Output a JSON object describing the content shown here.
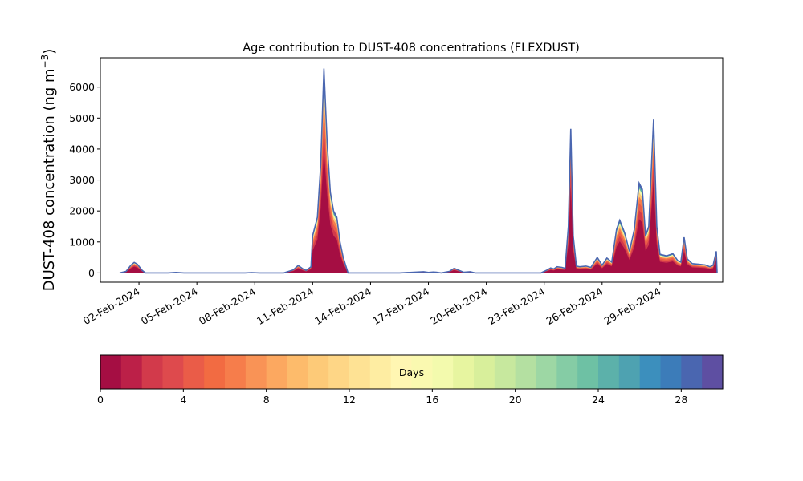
{
  "chart_data": {
    "type": "area",
    "title": "Age contribution to DUST-408 concentrations (FLEXDUST)",
    "ylabel": "DUST-408 concentration (ng m",
    "ylabel_sup": "−3",
    "ylabel_close": ")",
    "ylim": [
      -300,
      6950
    ],
    "xlim": [
      "2024-01-31T00:00",
      "2024-03-03T06:00"
    ],
    "grid": false,
    "y_ticks": [
      0,
      1000,
      2000,
      3000,
      4000,
      5000,
      6000
    ],
    "x_ticks": [
      {
        "date": "2024-02-02",
        "label": "02-Feb-2024"
      },
      {
        "date": "2024-02-05",
        "label": "05-Feb-2024"
      },
      {
        "date": "2024-02-08",
        "label": "08-Feb-2024"
      },
      {
        "date": "2024-02-11",
        "label": "11-Feb-2024"
      },
      {
        "date": "2024-02-14",
        "label": "14-Feb-2024"
      },
      {
        "date": "2024-02-17",
        "label": "17-Feb-2024"
      },
      {
        "date": "2024-02-20",
        "label": "20-Feb-2024"
      },
      {
        "date": "2024-02-23",
        "label": "23-Feb-2024"
      },
      {
        "date": "2024-02-26",
        "label": "26-Feb-2024"
      },
      {
        "date": "2024-02-29",
        "label": "29-Feb-2024"
      }
    ],
    "total": [
      [
        "2024-02-01T00:00",
        0
      ],
      [
        "2024-02-01T08:00",
        50
      ],
      [
        "2024-02-01T14:00",
        250
      ],
      [
        "2024-02-01T18:00",
        340
      ],
      [
        "2024-02-01T22:00",
        280
      ],
      [
        "2024-02-02T04:00",
        80
      ],
      [
        "2024-02-02T08:00",
        0
      ],
      [
        "2024-02-03T12:00",
        0
      ],
      [
        "2024-02-03T22:00",
        15
      ],
      [
        "2024-02-04T08:00",
        0
      ],
      [
        "2024-02-07T12:00",
        0
      ],
      [
        "2024-02-07T20:00",
        10
      ],
      [
        "2024-02-08T06:00",
        0
      ],
      [
        "2024-02-09T12:00",
        0
      ],
      [
        "2024-02-10T00:00",
        100
      ],
      [
        "2024-02-10T06:00",
        240
      ],
      [
        "2024-02-10T12:00",
        130
      ],
      [
        "2024-02-10T16:00",
        80
      ],
      [
        "2024-02-10T22:00",
        200
      ],
      [
        "2024-02-11T00:00",
        1200
      ],
      [
        "2024-02-11T06:00",
        1800
      ],
      [
        "2024-02-11T10:00",
        3500
      ],
      [
        "2024-02-11T14:00",
        6600
      ],
      [
        "2024-02-11T18:00",
        4200
      ],
      [
        "2024-02-11T22:00",
        2600
      ],
      [
        "2024-02-12T02:00",
        2000
      ],
      [
        "2024-02-12T06:00",
        1800
      ],
      [
        "2024-02-12T10:00",
        1000
      ],
      [
        "2024-02-12T14:00",
        500
      ],
      [
        "2024-02-12T20:00",
        0
      ],
      [
        "2024-02-15T12:00",
        0
      ],
      [
        "2024-02-16T18:00",
        40
      ],
      [
        "2024-02-17T00:00",
        15
      ],
      [
        "2024-02-17T06:00",
        30
      ],
      [
        "2024-02-17T10:00",
        20
      ],
      [
        "2024-02-17T16:00",
        0
      ],
      [
        "2024-02-18T02:00",
        50
      ],
      [
        "2024-02-18T08:00",
        150
      ],
      [
        "2024-02-18T14:00",
        80
      ],
      [
        "2024-02-18T20:00",
        20
      ],
      [
        "2024-02-19T04:00",
        40
      ],
      [
        "2024-02-19T10:00",
        0
      ],
      [
        "2024-02-22T20:00",
        0
      ],
      [
        "2024-02-23T04:00",
        100
      ],
      [
        "2024-02-23T08:00",
        160
      ],
      [
        "2024-02-23T12:00",
        130
      ],
      [
        "2024-02-23T16:00",
        200
      ],
      [
        "2024-02-23T22:00",
        180
      ],
      [
        "2024-02-24T02:00",
        150
      ],
      [
        "2024-02-24T06:00",
        1500
      ],
      [
        "2024-02-24T09:00",
        4650
      ],
      [
        "2024-02-24T12:00",
        1200
      ],
      [
        "2024-02-24T16:00",
        220
      ],
      [
        "2024-02-24T20:00",
        200
      ],
      [
        "2024-02-25T04:00",
        220
      ],
      [
        "2024-02-25T10:00",
        180
      ],
      [
        "2024-02-25T18:00",
        500
      ],
      [
        "2024-02-26T00:00",
        250
      ],
      [
        "2024-02-26T06:00",
        480
      ],
      [
        "2024-02-26T12:00",
        350
      ],
      [
        "2024-02-26T18:00",
        1400
      ],
      [
        "2024-02-26T22:00",
        1700
      ],
      [
        "2024-02-27T04:00",
        1300
      ],
      [
        "2024-02-27T10:00",
        700
      ],
      [
        "2024-02-27T16:00",
        1400
      ],
      [
        "2024-02-27T22:00",
        2900
      ],
      [
        "2024-02-28T02:00",
        2700
      ],
      [
        "2024-02-28T06:00",
        1200
      ],
      [
        "2024-02-28T10:00",
        1500
      ],
      [
        "2024-02-28T16:00",
        4950
      ],
      [
        "2024-02-28T20:00",
        1500
      ],
      [
        "2024-02-29T00:00",
        600
      ],
      [
        "2024-02-29T08:00",
        550
      ],
      [
        "2024-02-29T16:00",
        620
      ],
      [
        "2024-02-29T22:00",
        400
      ],
      [
        "2024-03-01T02:00",
        350
      ],
      [
        "2024-03-01T06:00",
        1150
      ],
      [
        "2024-03-01T10:00",
        450
      ],
      [
        "2024-03-01T16:00",
        300
      ],
      [
        "2024-03-02T00:00",
        280
      ],
      [
        "2024-03-02T08:00",
        260
      ],
      [
        "2024-03-02T14:00",
        200
      ],
      [
        "2024-03-02T18:00",
        250
      ],
      [
        "2024-03-02T22:00",
        700
      ],
      [
        "2024-03-02T23:00",
        0
      ]
    ],
    "colorbar": {
      "label": "Days",
      "range": [
        0,
        30
      ],
      "ticks": [
        0,
        4,
        8,
        12,
        16,
        20,
        24,
        28
      ],
      "colors": [
        "#a50e43",
        "#bc2048",
        "#d23a4b",
        "#de4a4d",
        "#ea5c48",
        "#f26b42",
        "#f67d4b",
        "#f99356",
        "#fca860",
        "#fdbb6b",
        "#fdca78",
        "#fed686",
        "#fee294",
        "#feeda2",
        "#fff6b2",
        "#faf9b0",
        "#f3faad",
        "#e7f5a0",
        "#d8ef9b",
        "#c7e89e",
        "#b4e0a1",
        "#9dd7a4",
        "#85cca5",
        "#6ec1a4",
        "#5cb1aa",
        "#4ea2b1",
        "#3c8fbd",
        "#3c7cb9",
        "#4a66b0",
        "#5e4fa2"
      ]
    }
  }
}
